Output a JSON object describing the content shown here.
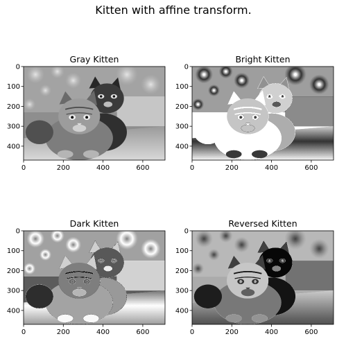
{
  "figure": {
    "suptitle": "Kitten with affine transform."
  },
  "chart_data": [
    {
      "type": "image",
      "title": "Gray Kitten",
      "variant": "gray",
      "xlim": [
        0,
        712
      ],
      "ylim": [
        470,
        0
      ],
      "xticks": [
        0,
        200,
        400,
        600
      ],
      "yticks": [
        0,
        100,
        200,
        300,
        400
      ],
      "colormap": "gray"
    },
    {
      "type": "image",
      "title": "Bright Kitten",
      "variant": "bright",
      "xlim": [
        0,
        712
      ],
      "ylim": [
        470,
        0
      ],
      "xticks": [
        0,
        200,
        400,
        600
      ],
      "yticks": [
        0,
        100,
        200,
        300,
        400
      ],
      "colormap": "gray"
    },
    {
      "type": "image",
      "title": "Dark Kitten",
      "variant": "dark",
      "xlim": [
        0,
        712
      ],
      "ylim": [
        470,
        0
      ],
      "xticks": [
        0,
        200,
        400,
        600
      ],
      "yticks": [
        0,
        100,
        200,
        300,
        400
      ],
      "colormap": "gray"
    },
    {
      "type": "image",
      "title": "Reversed Kitten",
      "variant": "reversed",
      "xlim": [
        0,
        712
      ],
      "ylim": [
        470,
        0
      ],
      "xticks": [
        0,
        200,
        400,
        600
      ],
      "yticks": [
        0,
        100,
        200,
        300,
        400
      ],
      "colormap": "gray"
    }
  ]
}
